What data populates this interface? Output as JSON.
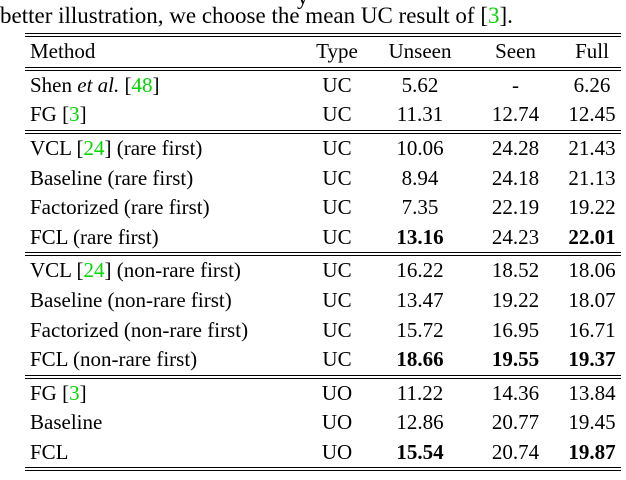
{
  "page": {
    "top_fragment": "y",
    "caption_parts": [
      {
        "t": "better illustration, we choose the mean UC result of [",
        "s": "n"
      },
      {
        "t": "3",
        "s": "c"
      },
      {
        "t": "].",
        "s": "n"
      }
    ]
  },
  "colors": {
    "citation_green": "#00d800",
    "text": "#000000"
  },
  "table": {
    "columns": [
      "Method",
      "Type",
      "Unseen",
      "Seen",
      "Full"
    ],
    "sections": [
      {
        "rows": [
          {
            "method": [
              {
                "t": "Shen ",
                "s": "n"
              },
              {
                "t": "et al.",
                "s": "i"
              },
              {
                "t": " [",
                "s": "n"
              },
              {
                "t": "48",
                "s": "c"
              },
              {
                "t": "]",
                "s": "n"
              }
            ],
            "type": "UC",
            "unseen": {
              "t": "5.62",
              "b": false
            },
            "seen": {
              "t": "-",
              "b": false
            },
            "full": {
              "t": "6.26",
              "b": false
            }
          },
          {
            "method": [
              {
                "t": "FG [",
                "s": "n"
              },
              {
                "t": "3",
                "s": "c"
              },
              {
                "t": "]",
                "s": "n"
              }
            ],
            "type": "UC",
            "unseen": {
              "t": "11.31",
              "b": false
            },
            "seen": {
              "t": "12.74",
              "b": false
            },
            "full": {
              "t": "12.45",
              "b": false
            }
          }
        ]
      },
      {
        "rows": [
          {
            "method": [
              {
                "t": "VCL [",
                "s": "n"
              },
              {
                "t": "24",
                "s": "c"
              },
              {
                "t": "] (rare first)",
                "s": "n"
              }
            ],
            "type": "UC",
            "unseen": {
              "t": "10.06",
              "b": false
            },
            "seen": {
              "t": "24.28",
              "b": false
            },
            "full": {
              "t": "21.43",
              "b": false
            }
          },
          {
            "method": [
              {
                "t": "Baseline (rare first)",
                "s": "n"
              }
            ],
            "type": "UC",
            "unseen": {
              "t": "8.94",
              "b": false
            },
            "seen": {
              "t": "24.18",
              "b": false
            },
            "full": {
              "t": "21.13",
              "b": false
            }
          },
          {
            "method": [
              {
                "t": "Factorized (rare first)",
                "s": "n"
              }
            ],
            "type": "UC",
            "unseen": {
              "t": "7.35",
              "b": false
            },
            "seen": {
              "t": "22.19",
              "b": false
            },
            "full": {
              "t": "19.22",
              "b": false
            }
          },
          {
            "method": [
              {
                "t": "FCL (rare first)",
                "s": "n"
              }
            ],
            "type": "UC",
            "unseen": {
              "t": "13.16",
              "b": true
            },
            "seen": {
              "t": "24.23",
              "b": false
            },
            "full": {
              "t": "22.01",
              "b": true
            }
          }
        ]
      },
      {
        "rows": [
          {
            "method": [
              {
                "t": "VCL [",
                "s": "n"
              },
              {
                "t": "24",
                "s": "c"
              },
              {
                "t": "] (non-rare first)",
                "s": "n"
              }
            ],
            "type": "UC",
            "unseen": {
              "t": "16.22",
              "b": false
            },
            "seen": {
              "t": "18.52",
              "b": false
            },
            "full": {
              "t": "18.06",
              "b": false
            }
          },
          {
            "method": [
              {
                "t": "Baseline (non-rare first)",
                "s": "n"
              }
            ],
            "type": "UC",
            "unseen": {
              "t": "13.47",
              "b": false
            },
            "seen": {
              "t": "19.22",
              "b": false
            },
            "full": {
              "t": "18.07",
              "b": false
            }
          },
          {
            "method": [
              {
                "t": "Factorized (non-rare first)",
                "s": "n"
              }
            ],
            "type": "UC",
            "unseen": {
              "t": "15.72",
              "b": false
            },
            "seen": {
              "t": "16.95",
              "b": false
            },
            "full": {
              "t": "16.71",
              "b": false
            }
          },
          {
            "method": [
              {
                "t": "FCL (non-rare first)",
                "s": "n"
              }
            ],
            "type": "UC",
            "unseen": {
              "t": "18.66",
              "b": true
            },
            "seen": {
              "t": "19.55",
              "b": true
            },
            "full": {
              "t": "19.37",
              "b": true
            }
          }
        ]
      },
      {
        "rows": [
          {
            "method": [
              {
                "t": "FG [",
                "s": "n"
              },
              {
                "t": "3",
                "s": "c"
              },
              {
                "t": "]",
                "s": "n"
              }
            ],
            "type": "UO",
            "unseen": {
              "t": "11.22",
              "b": false
            },
            "seen": {
              "t": "14.36",
              "b": false
            },
            "full": {
              "t": "13.84",
              "b": false
            }
          },
          {
            "method": [
              {
                "t": "Baseline",
                "s": "n"
              }
            ],
            "type": "UO",
            "unseen": {
              "t": "12.86",
              "b": false
            },
            "seen": {
              "t": "20.77",
              "b": false
            },
            "full": {
              "t": "19.45",
              "b": false
            }
          },
          {
            "method": [
              {
                "t": "FCL",
                "s": "n"
              }
            ],
            "type": "UO",
            "unseen": {
              "t": "15.54",
              "b": true
            },
            "seen": {
              "t": "20.74",
              "b": false
            },
            "full": {
              "t": "19.87",
              "b": true
            }
          }
        ]
      }
    ]
  }
}
